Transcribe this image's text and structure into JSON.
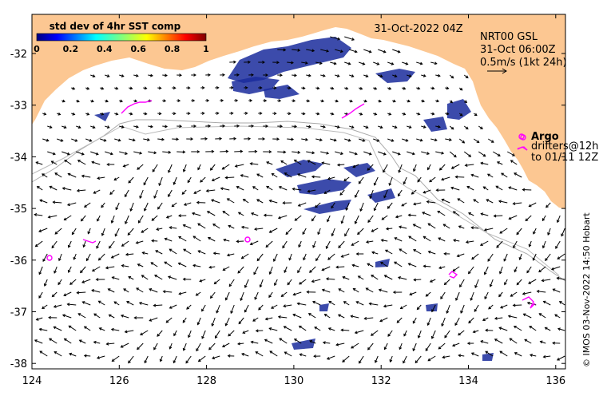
{
  "map": {
    "date_label": "31-Oct-2022 04Z",
    "product_line1": "NRT00 GSL",
    "product_line2": "31-Oct 06:00Z",
    "vector_scale_label": "0.5m/s (1kt 24h)",
    "credit": "© IMOS 03-Nov-2022 14:50 Hobart",
    "colorbar": {
      "title": "std dev of 4hr SST comp",
      "ticks": [
        "0",
        "0.2",
        "0.4",
        "0.6",
        "0.8",
        "1"
      ]
    },
    "legend": {
      "argo_label": "Argo",
      "drifters_line1": "drifters@12h",
      "drifters_line2": "to 01/11 12Z"
    },
    "x_ticks": [
      "124",
      "126",
      "128",
      "130",
      "132",
      "134",
      "136"
    ],
    "y_ticks": [
      "-32",
      "-33",
      "-34",
      "-35",
      "-36",
      "-37",
      "-38"
    ],
    "colors": {
      "land": "#fcc792",
      "ocean": "#ffffff",
      "magenta": "#ff00ff",
      "sst_patch": "#1a2b9c",
      "isobath": "#aaaaaa"
    }
  }
}
